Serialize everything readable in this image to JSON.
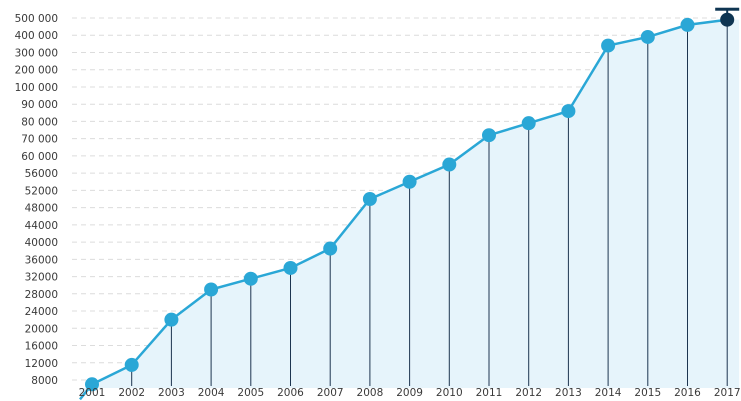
{
  "chart_data": {
    "type": "area",
    "title": "",
    "xlabel": "",
    "ylabel": "",
    "grid": true,
    "legend": "none",
    "y_scale": "categorical-ticks",
    "y_ticks": [
      "8000",
      "12000",
      "16000",
      "20000",
      "24000",
      "28000",
      "32000",
      "36000",
      "40000",
      "44000",
      "48000",
      "52000",
      "56000",
      "60000",
      "70000",
      "80000",
      "90000",
      "100000",
      "200000",
      "300000",
      "400000",
      "500000"
    ],
    "y_tick_labels": [
      "8000",
      "12000",
      "16000",
      "20000",
      "24000",
      "28000",
      "32000",
      "36000",
      "40000",
      "44000",
      "48000",
      "52000",
      "56000",
      "60 000",
      "70 000",
      "80 000",
      "90 000",
      "100 000",
      "200 000",
      "300 000",
      "400 000",
      "500 000"
    ],
    "categories": [
      "2001",
      "2002",
      "2003",
      "2004",
      "2005",
      "2006",
      "2007",
      "2008",
      "2009",
      "2010",
      "2011",
      "2012",
      "2013",
      "2014",
      "2015",
      "2016",
      "2017"
    ],
    "series": [
      {
        "values": [
          7000,
          11500,
          22000,
          29000,
          31500,
          34000,
          38500,
          50000,
          54000,
          58000,
          72000,
          79000,
          86000,
          340000,
          390000,
          460000,
          490000
        ]
      }
    ],
    "colors": {
      "line": "#2aa7d6",
      "marker": "#2aa7d6",
      "last_marker": "#0f3552",
      "fill": "#e6f4fb",
      "drop_line": "#1d3550",
      "grid": "#dcdcdc"
    }
  }
}
